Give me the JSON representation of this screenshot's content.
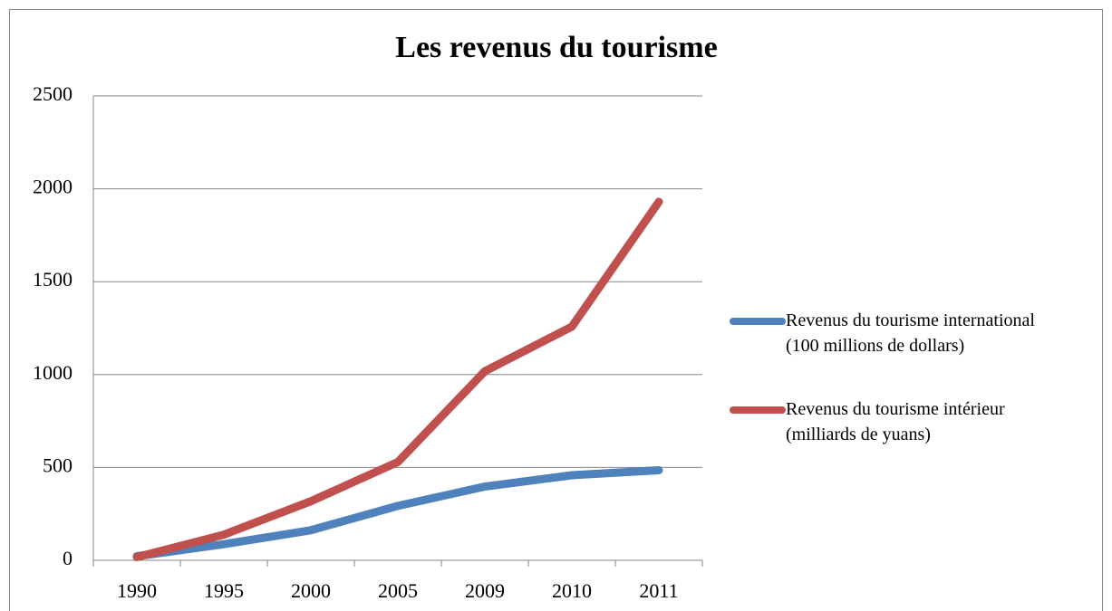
{
  "chart_data": {
    "type": "line",
    "title": "Les revenus du tourisme",
    "categories": [
      "1990",
      "1995",
      "2000",
      "2005",
      "2009",
      "2010",
      "2011"
    ],
    "series": [
      {
        "name": "Revenus du tourisme international (100 millions de dollars)",
        "color": "#4f81bd",
        "values": [
          22,
          87,
          162,
          293,
          397,
          458,
          485
        ]
      },
      {
        "name": "Revenus du tourisme intérieur (milliards de yuans)",
        "color": "#c0504d",
        "values": [
          17,
          138,
          318,
          529,
          1018,
          1258,
          1930
        ]
      }
    ],
    "ylim": [
      0,
      2500
    ],
    "yticks": [
      0,
      500,
      1000,
      1500,
      2000,
      2500
    ],
    "grid": true,
    "legend": "right"
  }
}
